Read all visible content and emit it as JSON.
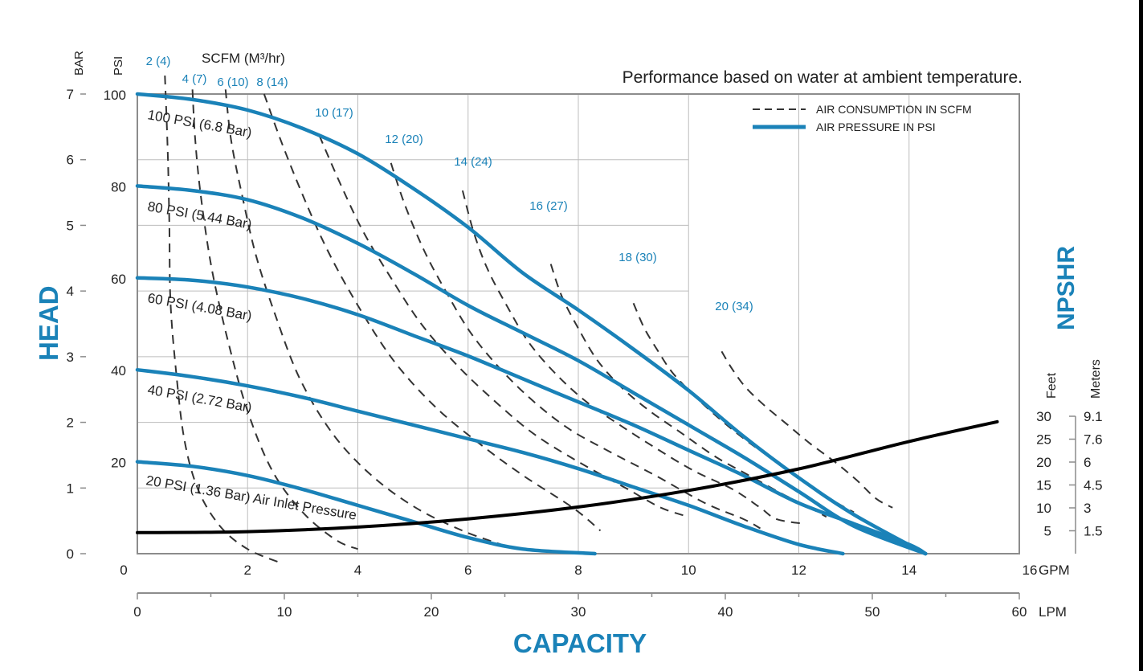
{
  "chart_data": {
    "type": "line",
    "title": "Performance based on water at ambient temperature.",
    "colors": {
      "pressure": "#1a82b8",
      "air": "#333333",
      "npshr": "#000000",
      "axis_title": "#1a82b8",
      "scfm_label": "#1a82b8",
      "grid": "#bdbdbd"
    },
    "axes": {
      "x_gpm": {
        "label": "GPM",
        "ticks": [
          "0",
          "2",
          "4",
          "6",
          "8",
          "10",
          "12",
          "14",
          "16"
        ],
        "range": [
          0,
          16
        ]
      },
      "x_lpm": {
        "label": "LPM",
        "ticks": [
          "0",
          "10",
          "20",
          "30",
          "40",
          "50",
          "60"
        ],
        "range": [
          0,
          60
        ]
      },
      "y_psi": {
        "label": "PSI",
        "ticks": [
          "20",
          "40",
          "60",
          "80",
          "100"
        ],
        "range": [
          0,
          100
        ]
      },
      "y_bar": {
        "label": "BAR",
        "ticks": [
          "0",
          "1",
          "2",
          "3",
          "4",
          "5",
          "6",
          "7"
        ],
        "range": [
          0,
          7
        ]
      },
      "npshr_feet": {
        "label": "Feet",
        "ticks": [
          "5",
          "10",
          "15",
          "20",
          "25",
          "30"
        ]
      },
      "npshr_meters": {
        "label": "Meters",
        "ticks": [
          "1.5",
          "3",
          "4.5",
          "6",
          "7.6",
          "9.1"
        ]
      },
      "scfm_header": "SCFM (M³/hr)",
      "x_title": "CAPACITY",
      "y_title": "HEAD",
      "y2_title": "NPSHR"
    },
    "legend": {
      "position": "top-right",
      "items": [
        {
          "label": "AIR CONSUMPTION IN SCFM",
          "style": "dashed"
        },
        {
          "label": "AIR PRESSURE IN PSI",
          "style": "solid"
        }
      ]
    },
    "pressure_series": [
      {
        "name": "100 PSI (6.8 Bar)",
        "points": [
          [
            0,
            100
          ],
          [
            1,
            98.8
          ],
          [
            2,
            96.5
          ],
          [
            3,
            92.5
          ],
          [
            4,
            87
          ],
          [
            5,
            79.5
          ],
          [
            6,
            71
          ],
          [
            7,
            61
          ],
          [
            8,
            53
          ],
          [
            9,
            44.5
          ],
          [
            10,
            35.5
          ],
          [
            11,
            25.5
          ],
          [
            12,
            16.5
          ],
          [
            13,
            8.5
          ],
          [
            14.3,
            0
          ]
        ]
      },
      {
        "name": "80 PSI (5.44 Bar)",
        "points": [
          [
            0,
            80
          ],
          [
            1,
            79
          ],
          [
            2,
            77
          ],
          [
            3,
            73
          ],
          [
            4,
            67.5
          ],
          [
            5,
            61
          ],
          [
            6,
            54
          ],
          [
            7,
            48
          ],
          [
            8,
            42
          ],
          [
            9,
            35
          ],
          [
            10,
            28
          ],
          [
            11,
            21
          ],
          [
            12,
            13.5
          ],
          [
            13,
            6
          ],
          [
            14.3,
            0
          ]
        ]
      },
      {
        "name": "60 PSI (4.08 Bar)",
        "points": [
          [
            0,
            60
          ],
          [
            1,
            59.5
          ],
          [
            2,
            58
          ],
          [
            3,
            55.5
          ],
          [
            4,
            52
          ],
          [
            5,
            47.5
          ],
          [
            6,
            43
          ],
          [
            7,
            38
          ],
          [
            8,
            33
          ],
          [
            9,
            28
          ],
          [
            10,
            22.5
          ],
          [
            11,
            17
          ],
          [
            12,
            11
          ],
          [
            13,
            6.5
          ],
          [
            14,
            2
          ],
          [
            14.3,
            0
          ]
        ]
      },
      {
        "name": "40 PSI (2.72 Bar)",
        "points": [
          [
            0,
            40
          ],
          [
            1,
            38.5
          ],
          [
            2,
            36.5
          ],
          [
            3,
            34
          ],
          [
            4,
            31
          ],
          [
            5,
            28
          ],
          [
            6,
            25
          ],
          [
            7,
            22
          ],
          [
            8,
            18.5
          ],
          [
            9,
            14.5
          ],
          [
            10,
            10.5
          ],
          [
            11,
            6
          ],
          [
            12,
            2
          ],
          [
            12.8,
            0
          ]
        ]
      },
      {
        "name": "20 PSI (1.36 Bar) Air Inlet Pressure",
        "points": [
          [
            0,
            20
          ],
          [
            1,
            19
          ],
          [
            2,
            17
          ],
          [
            3,
            14
          ],
          [
            4,
            10.5
          ],
          [
            5,
            7
          ],
          [
            6,
            3.5
          ],
          [
            7,
            1
          ],
          [
            8.3,
            0
          ]
        ]
      }
    ],
    "air_series": [
      {
        "name": "2 (4)",
        "points": [
          [
            0.5,
            104
          ],
          [
            0.55,
            88
          ],
          [
            0.58,
            72
          ],
          [
            0.6,
            55
          ],
          [
            0.7,
            40
          ],
          [
            0.85,
            25
          ],
          [
            1.1,
            14
          ],
          [
            1.5,
            6
          ],
          [
            2,
            1
          ],
          [
            2.6,
            -2
          ]
        ]
      },
      {
        "name": "4 (7)",
        "points": [
          [
            1,
            101
          ],
          [
            1.05,
            90
          ],
          [
            1.15,
            78
          ],
          [
            1.35,
            62
          ],
          [
            1.65,
            46
          ],
          [
            2,
            31
          ],
          [
            2.45,
            18
          ],
          [
            3,
            9
          ],
          [
            3.6,
            3
          ],
          [
            4,
            1
          ]
        ]
      },
      {
        "name": "6 (10)",
        "points": [
          [
            1.6,
            101
          ],
          [
            1.7,
            90
          ],
          [
            1.9,
            78
          ],
          [
            2.15,
            65
          ],
          [
            2.5,
            52
          ],
          [
            2.95,
            38
          ],
          [
            3.55,
            26
          ],
          [
            4.25,
            17
          ],
          [
            5.05,
            10
          ],
          [
            5.9,
            5
          ],
          [
            6.6,
            2
          ]
        ]
      },
      {
        "name": "8 (14)",
        "points": [
          [
            2.3,
            100
          ],
          [
            2.6,
            90
          ],
          [
            3,
            78
          ],
          [
            3.45,
            66
          ],
          [
            4,
            54
          ],
          [
            4.65,
            42
          ],
          [
            5.4,
            32
          ],
          [
            6.2,
            24
          ],
          [
            7,
            17
          ],
          [
            7.9,
            10
          ],
          [
            8.4,
            5
          ]
        ]
      },
      {
        "name": "10 (17)",
        "points": [
          [
            3.3,
            91
          ],
          [
            3.7,
            80
          ],
          [
            4.1,
            70
          ],
          [
            4.6,
            60
          ],
          [
            5.15,
            50
          ],
          [
            5.8,
            41
          ],
          [
            6.5,
            33
          ],
          [
            7.2,
            26
          ],
          [
            8,
            20
          ],
          [
            8.9,
            14
          ],
          [
            9.5,
            10
          ],
          [
            10,
            8
          ]
        ]
      },
      {
        "name": "12 (20)",
        "points": [
          [
            4.6,
            85
          ],
          [
            4.85,
            76
          ],
          [
            5.2,
            66
          ],
          [
            5.6,
            57
          ],
          [
            6.05,
            48
          ],
          [
            6.6,
            40
          ],
          [
            7.2,
            33
          ],
          [
            7.85,
            27
          ],
          [
            8.6,
            22
          ],
          [
            9.4,
            17
          ],
          [
            10.3,
            11
          ],
          [
            11,
            7.5
          ],
          [
            11.3,
            5.5
          ]
        ]
      },
      {
        "name": "14 (24)",
        "points": [
          [
            5.9,
            79
          ],
          [
            6.1,
            70
          ],
          [
            6.35,
            62
          ],
          [
            6.7,
            54
          ],
          [
            7.1,
            46
          ],
          [
            7.6,
            39
          ],
          [
            8.15,
            33
          ],
          [
            8.75,
            28
          ],
          [
            9.4,
            23
          ],
          [
            10.1,
            18
          ],
          [
            10.8,
            14
          ],
          [
            11.3,
            10
          ],
          [
            11.6,
            7.5
          ],
          [
            12.1,
            6.5
          ]
        ]
      },
      {
        "name": "16 (27)",
        "points": [
          [
            7.5,
            63
          ],
          [
            7.7,
            56
          ],
          [
            8,
            49
          ],
          [
            8.35,
            42
          ],
          [
            8.8,
            36
          ],
          [
            9.3,
            31
          ],
          [
            9.9,
            26
          ],
          [
            10.5,
            21
          ],
          [
            11.1,
            17
          ],
          [
            11.7,
            13
          ],
          [
            12.2,
            10
          ],
          [
            12.5,
            8
          ]
        ]
      },
      {
        "name": "18 (30)",
        "points": [
          [
            9,
            54.5
          ],
          [
            9.2,
            49
          ],
          [
            9.45,
            44
          ],
          [
            9.7,
            39.5
          ],
          [
            10.05,
            35
          ],
          [
            10.45,
            30.5
          ],
          [
            10.9,
            26
          ],
          [
            11.35,
            22
          ],
          [
            11.85,
            18
          ],
          [
            12.3,
            14
          ],
          [
            12.7,
            11
          ],
          [
            13,
            9
          ]
        ]
      },
      {
        "name": "20 (34)",
        "points": [
          [
            10.6,
            44
          ],
          [
            10.8,
            40
          ],
          [
            11.05,
            36
          ],
          [
            11.4,
            32
          ],
          [
            11.8,
            28
          ],
          [
            12.2,
            24
          ],
          [
            12.65,
            20
          ],
          [
            13.05,
            16
          ],
          [
            13.4,
            12
          ],
          [
            13.7,
            10
          ]
        ]
      }
    ],
    "npshr_series": {
      "name": "NPSHR",
      "points": [
        [
          0,
          4.6
        ],
        [
          2,
          4.8
        ],
        [
          4,
          5.8
        ],
        [
          6,
          7.6
        ],
        [
          8,
          10.2
        ],
        [
          10,
          13.8
        ],
        [
          12,
          18.5
        ],
        [
          14,
          24.5
        ],
        [
          15.6,
          28.8
        ]
      ]
    },
    "point_labels": {
      "pressure": [
        "100 PSI (6.8 Bar)",
        "80 PSI (5.44 Bar)",
        "60 PSI (4.08 Bar)",
        "40 PSI (2.72 Bar)",
        "20 PSI (1.36 Bar) Air Inlet Pressure"
      ],
      "air": [
        "2 (4)",
        "4 (7)",
        "6 (10)",
        "8 (14)",
        "10 (17)",
        "12 (20)",
        "14 (24)",
        "16 (27)",
        "18 (30)",
        "20 (34)"
      ]
    }
  }
}
